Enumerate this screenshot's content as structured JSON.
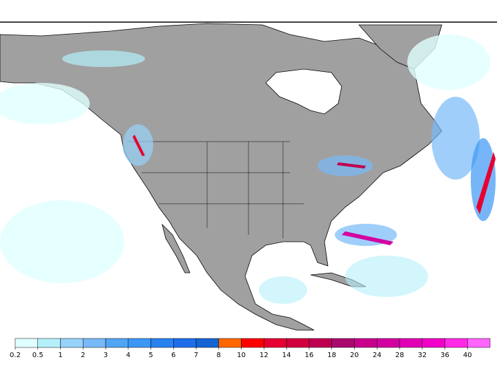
{
  "colorbar": {
    "ticks": [
      0.2,
      0.5,
      1,
      2,
      3,
      4,
      5,
      6,
      7,
      8,
      10,
      12,
      14,
      16,
      18,
      20,
      24,
      28,
      32,
      36,
      40
    ],
    "colors": [
      "#e0ffff",
      "#b4f0fa",
      "#96d2fa",
      "#78b9fa",
      "#50a5f5",
      "#3c97f5",
      "#2883f0",
      "#1e6eeb",
      "#1464d2",
      "#ff6600",
      "#ff0000",
      "#e60032",
      "#d2003c",
      "#be0050",
      "#aa0a6e",
      "#c8008c",
      "#d200a0",
      "#e100b4",
      "#f000c8",
      "#ff28e6",
      "#ff64ff"
    ]
  }
}
